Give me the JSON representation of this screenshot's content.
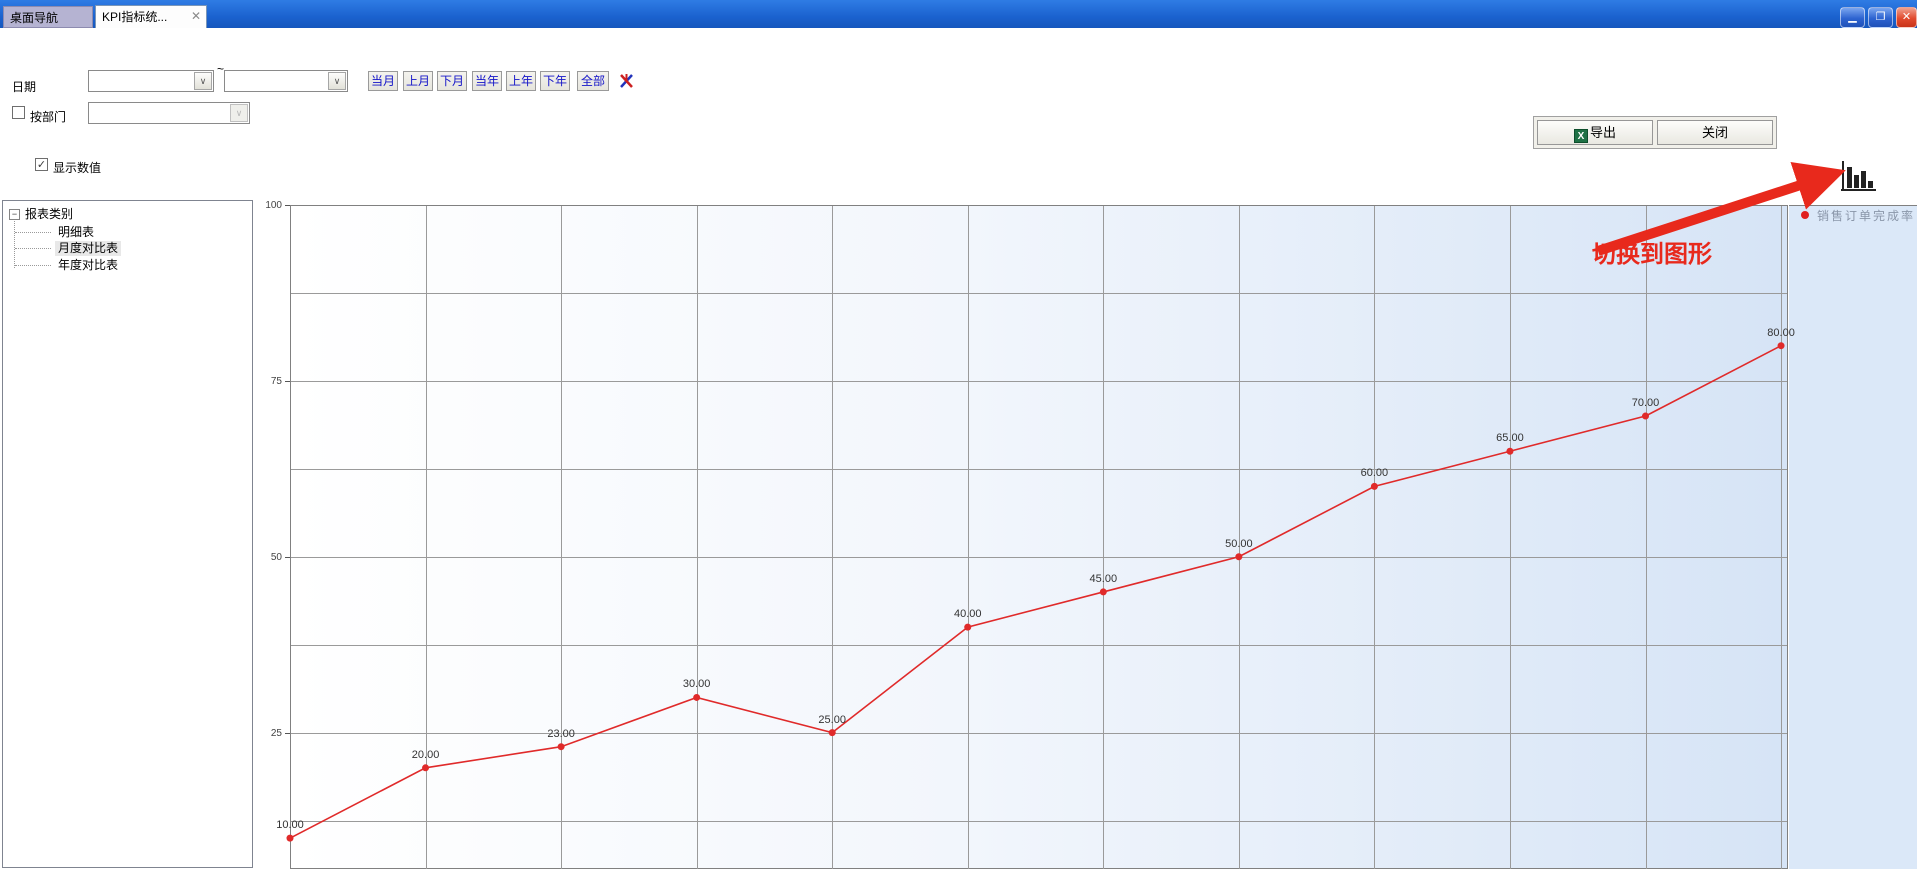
{
  "window": {
    "tabs": [
      {
        "label": "桌面导航",
        "active": false
      },
      {
        "label": "KPI指标统...",
        "active": true
      }
    ]
  },
  "filters": {
    "date_label": "日期",
    "range_separator": "~",
    "quick_buttons": [
      "当月",
      "上月",
      "下月",
      "当年",
      "上年",
      "下年",
      "全部"
    ],
    "by_department_label": "按部门",
    "show_values_label": "显示数值",
    "show_values_checked": true,
    "by_department_checked": false
  },
  "toolbar": {
    "export_label": "导出",
    "export_icon_letter": "X",
    "close_label": "关闭"
  },
  "tree": {
    "root": "报表类别",
    "items": [
      "明细表",
      "月度对比表",
      "年度对比表"
    ],
    "selected_index": 1
  },
  "annotation": {
    "text": "切换到图形",
    "color": "#e8291c"
  },
  "chart_data": {
    "type": "line",
    "title": "",
    "xlabel": "",
    "ylabel": "",
    "series": [
      {
        "name": "销售订单完成率",
        "color": "#e02a2a",
        "values": [
          10,
          20,
          23,
          30,
          25,
          40,
          45,
          50,
          60,
          65,
          70,
          80
        ]
      }
    ],
    "point_labels": [
      "10.00",
      "20.00",
      "23.00",
      "30.00",
      "25.00",
      "40.00",
      "45.00",
      "50.00",
      "60.00",
      "65.00",
      "70.00",
      "80.00"
    ],
    "yticks": [
      100,
      75,
      50,
      25
    ],
    "ylim": [
      0,
      100
    ],
    "grid": true,
    "show_values": true,
    "legend_position": "right",
    "plot_bg_gradient": [
      "#ffffff",
      "#d6e4f6"
    ]
  }
}
